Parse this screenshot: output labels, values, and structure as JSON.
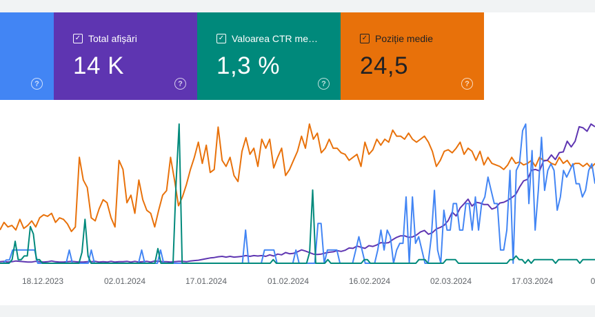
{
  "cards": {
    "clicks": {
      "color": "#4285f4",
      "help_icon": "help-circle-icon"
    },
    "impressions": {
      "label": "Total afișări",
      "value": "14 K",
      "checked": true,
      "color": "#5e35b1",
      "help_icon": "help-circle-icon"
    },
    "ctr": {
      "label": "Valoarea CTR me…",
      "value": "1,3 %",
      "checked": true,
      "color": "#00897b",
      "help_icon": "help-circle-icon"
    },
    "position": {
      "label": "Poziție medie",
      "value": "24,5",
      "checked": true,
      "color": "#e8710a",
      "help_icon": "help-circle-icon"
    }
  },
  "chart_data": {
    "type": "line",
    "x_tick_labels": [
      "18.12.2023",
      "02.01.2024",
      "17.01.2024",
      "01.02.2024",
      "16.02.2024",
      "02.03.2024",
      "17.03.2024",
      "0"
    ],
    "y_axis_labels": "none",
    "grid": false,
    "series": [
      {
        "color": "#e8710a",
        "values": [
          22,
          27,
          24,
          25,
          22,
          29,
          23,
          25,
          28,
          24,
          30,
          32,
          31,
          33,
          27,
          30,
          29,
          26,
          21,
          24,
          70,
          55,
          50,
          30,
          28,
          36,
          42,
          40,
          30,
          24,
          68,
          62,
          40,
          45,
          33,
          55,
          42,
          35,
          33,
          24,
          35,
          45,
          48,
          70,
          55,
          38,
          44,
          52,
          62,
          70,
          80,
          66,
          78,
          60,
          62,
          90,
          68,
          64,
          70,
          58,
          54,
          74,
          83,
          72,
          76,
          64,
          82,
          76,
          82,
          63,
          70,
          76,
          58,
          62,
          68,
          74,
          84,
          76,
          92,
          82,
          86,
          73,
          76,
          82,
          76,
          76,
          73,
          72,
          68,
          70,
          72,
          64,
          80,
          72,
          75,
          82,
          78,
          82,
          80,
          88,
          84,
          84,
          82,
          86,
          82,
          80,
          82,
          84,
          80,
          74,
          64,
          68,
          74,
          75,
          73,
          76,
          80,
          72,
          76,
          74,
          68,
          74,
          65,
          70,
          66,
          65,
          64,
          62,
          65,
          70,
          66,
          67,
          65,
          66,
          68,
          64,
          70,
          68,
          68,
          66,
          65,
          70,
          66,
          68,
          64,
          66,
          66,
          64,
          66,
          63,
          66
        ]
      },
      {
        "color": "#5e35b1",
        "values": [
          0.4,
          0.5,
          0.3,
          0.4,
          0.6,
          0.5,
          0.4,
          0.3,
          0.3,
          0.5,
          0.4,
          0.3,
          0.4,
          0.6,
          0.4,
          0.3,
          0.3,
          0.4,
          0.5,
          0.4,
          0.3,
          0.3,
          0.4,
          0.4,
          0.5,
          0.3,
          0.4,
          0.3,
          0.5,
          0.3,
          0.4,
          0.4,
          0.5,
          0.3,
          0.5,
          0.3,
          0.4,
          0.5,
          0.3,
          0.6,
          0.5,
          0.4,
          0.4,
          0.3,
          0.4,
          0.5,
          0.5,
          0.4,
          0.6,
          0.7,
          0.8,
          1.0,
          1.2,
          1.4,
          1.5,
          1.7,
          1.8,
          1.6,
          1.8,
          1.6,
          1.7,
          1.8,
          2.0,
          1.8,
          2.0,
          1.9,
          2.0,
          1.8,
          2.2,
          1.9,
          2.4,
          2.2,
          2.8,
          2.5,
          2.6,
          3.0,
          3.5,
          3.2,
          2.8,
          2.4,
          2.3,
          2.4,
          2.7,
          2.9,
          3.0,
          3.3,
          3.1,
          3.4,
          4.0,
          3.9,
          4.5,
          4.2,
          3.9,
          4.6,
          4.4,
          4.8,
          5.4,
          5.3,
          5.4,
          6.2,
          6.8,
          7.2,
          7.2,
          6.8,
          6.9,
          7.4,
          8.2,
          8.6,
          7.6,
          8.0,
          9.0,
          9.4,
          10.0,
          11.2,
          13.4,
          12.4,
          14.5,
          15.6,
          16.8,
          15.0,
          16.0,
          15.8,
          15.4,
          15.4,
          14.2,
          14.6,
          15.8,
          16.0,
          16.5,
          17.2,
          18.0,
          20.0,
          21.6,
          22.0,
          24.4,
          24.6,
          24.2,
          26.8,
          27.0,
          28.4,
          27.2,
          29.0,
          29.2,
          32.0,
          30.5,
          32.0,
          35.8,
          35.5,
          34.6,
          36.5,
          35.8
        ]
      },
      {
        "color": "#4285f4",
        "values": [
          0,
          0,
          1,
          1,
          4,
          4,
          4,
          4,
          4,
          4,
          4,
          4,
          0,
          0,
          0,
          0,
          0,
          0,
          0,
          0,
          0,
          0,
          4,
          0,
          0,
          0,
          0,
          0,
          0,
          4,
          0,
          0,
          0,
          0,
          0,
          0,
          0,
          0,
          0,
          0,
          0,
          0,
          0,
          0,
          0,
          4,
          0,
          0,
          0,
          0,
          0,
          4,
          0,
          0,
          0,
          0,
          0,
          0,
          0,
          0,
          0,
          0,
          0,
          0,
          0,
          0,
          0,
          0,
          0,
          0,
          0,
          0,
          0,
          0,
          0,
          0,
          0,
          0,
          10,
          0,
          0,
          0,
          0,
          0,
          4,
          4,
          4,
          4,
          0,
          0,
          0,
          0,
          0,
          0,
          4,
          0,
          0,
          0,
          0,
          0,
          0,
          12,
          12,
          0,
          4,
          4,
          4,
          4,
          0,
          0,
          0,
          0,
          0,
          4,
          8,
          4,
          0,
          0,
          0,
          0,
          4,
          10,
          4,
          10,
          8,
          0,
          4,
          6,
          6,
          20,
          0,
          20,
          6,
          8,
          4,
          0,
          0,
          8,
          22,
          4,
          0,
          16,
          10,
          10,
          18,
          18,
          10,
          10,
          18,
          18,
          10,
          20,
          10,
          18,
          20,
          26,
          22,
          18,
          18,
          4,
          4,
          10,
          28,
          0,
          28,
          30,
          40,
          42,
          18,
          34,
          10,
          22,
          38,
          22,
          28,
          30,
          28,
          16,
          20,
          28,
          26,
          28,
          30,
          24,
          24,
          20,
          22,
          28,
          30,
          24
        ]
      },
      {
        "color": "#00897b",
        "values": [
          0,
          0,
          0,
          0,
          1,
          6,
          1,
          1,
          2,
          2,
          10,
          8,
          1,
          1,
          0,
          0,
          0,
          0,
          0,
          0,
          0,
          0,
          0,
          0,
          0,
          0,
          0,
          3,
          12,
          2,
          0,
          0,
          0,
          0,
          0,
          0,
          0,
          0,
          0,
          0,
          0,
          0,
          0,
          0,
          0,
          0,
          0,
          0,
          0,
          0,
          0,
          0,
          4,
          0,
          0,
          0,
          0,
          0,
          22,
          38,
          0,
          0,
          0,
          0,
          0,
          0,
          0,
          0,
          0,
          0,
          0,
          0,
          0,
          0,
          0,
          0,
          0,
          0,
          0,
          0,
          0,
          0,
          0,
          0,
          0,
          0,
          0,
          0,
          0,
          0,
          1,
          0,
          0,
          0,
          0,
          0,
          0,
          0,
          0,
          0,
          0,
          0,
          3,
          20,
          0,
          0,
          0,
          0,
          1,
          0,
          0,
          0,
          0,
          0,
          0,
          0,
          0,
          0,
          0,
          0,
          1,
          1,
          0,
          0,
          0,
          0,
          0,
          0,
          0,
          0,
          0,
          0,
          0,
          0,
          0,
          0,
          0,
          0,
          1,
          1,
          1,
          0,
          0,
          0,
          0,
          0,
          0,
          1,
          1,
          1,
          1,
          0,
          0,
          0,
          0,
          0,
          0,
          0,
          0,
          0,
          0,
          0,
          0,
          0,
          0,
          0,
          0,
          0,
          1,
          1,
          2,
          1,
          1,
          0,
          1,
          0,
          1,
          1,
          1,
          1,
          1,
          1,
          1,
          0,
          1,
          1,
          1,
          1,
          1,
          1,
          1,
          0,
          1,
          1,
          1,
          1,
          1
        ]
      }
    ]
  }
}
